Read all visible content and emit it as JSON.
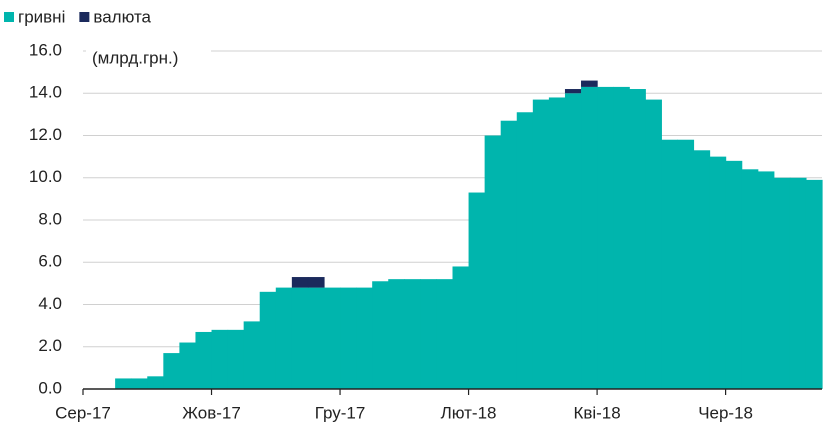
{
  "chart_data": {
    "type": "stacked_area",
    "annotation": "(млрд.грн.)",
    "categories": [
      "Сер-17",
      null,
      null,
      null,
      null,
      null,
      null,
      null,
      "Жов-17",
      null,
      null,
      null,
      null,
      null,
      null,
      null,
      "Гру-17",
      null,
      null,
      null,
      null,
      null,
      null,
      null,
      "Лют-18",
      null,
      null,
      null,
      null,
      null,
      null,
      null,
      "Кві-18",
      null,
      null,
      null,
      null,
      null,
      null,
      null,
      "Чер-18",
      null,
      null,
      null,
      null,
      null
    ],
    "series": [
      {
        "name": "гривні",
        "color": "#00b5ad",
        "values": [
          0,
          0,
          0.5,
          0.5,
          0.6,
          1.7,
          2.2,
          2.7,
          2.8,
          2.8,
          3.2,
          4.6,
          4.8,
          4.8,
          4.8,
          4.8,
          4.8,
          4.8,
          5.1,
          5.2,
          5.2,
          5.2,
          5.2,
          5.8,
          9.3,
          12.0,
          12.7,
          13.1,
          13.7,
          13.8,
          14.0,
          14.3,
          14.3,
          14.3,
          14.2,
          13.7,
          11.8,
          11.8,
          11.3,
          11.0,
          10.8,
          10.4,
          10.3,
          10.0,
          10.0,
          9.9
        ]
      },
      {
        "name": "валюта",
        "color": "#1b2a5c",
        "values": [
          0,
          0,
          0,
          0,
          0,
          0,
          0,
          0,
          0,
          0,
          0,
          0,
          0,
          0.5,
          0.5,
          0,
          0,
          0,
          0,
          0,
          0,
          0,
          0,
          0,
          0,
          0,
          0,
          0,
          0,
          0,
          0.2,
          0.3,
          0,
          0,
          0,
          0,
          0,
          0,
          0,
          0,
          0,
          0,
          0,
          0,
          0,
          0
        ]
      }
    ],
    "ylim": [
      0,
      16
    ],
    "yticks": [
      {
        "value": 0,
        "label": "0.0"
      },
      {
        "value": 2,
        "label": "2.0"
      },
      {
        "value": 4,
        "label": "4.0"
      },
      {
        "value": 6,
        "label": "6.0"
      },
      {
        "value": 8,
        "label": "8.0"
      },
      {
        "value": 10,
        "label": "10.0"
      },
      {
        "value": 12,
        "label": "12.0"
      },
      {
        "value": 14,
        "label": "14.0"
      },
      {
        "value": 16,
        "label": "16.0"
      }
    ],
    "grid": true
  }
}
